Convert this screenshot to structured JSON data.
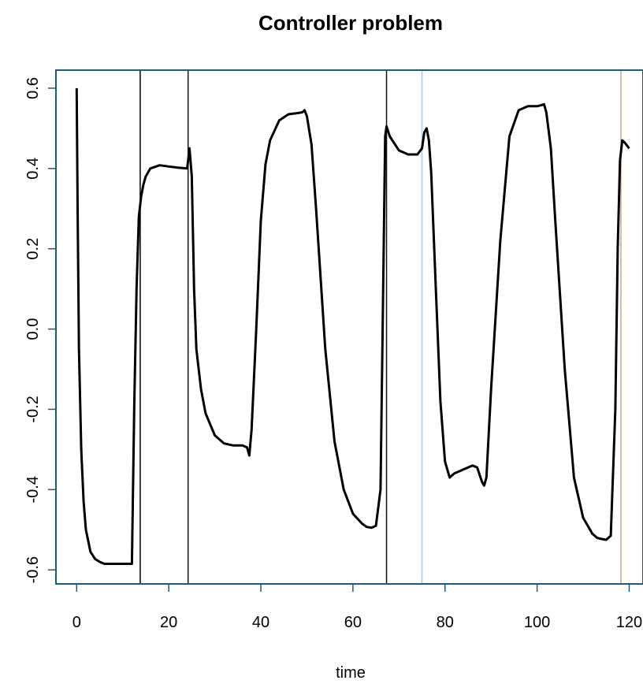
{
  "chart_data": {
    "type": "line",
    "title": "Controller problem",
    "xlabel": "time",
    "ylabel": "",
    "xlim": [
      -4.5,
      123
    ],
    "ylim": [
      -0.635,
      0.645
    ],
    "x_ticks": [
      0,
      20,
      40,
      60,
      80,
      100,
      120
    ],
    "x_tick_labels": [
      "0",
      "20",
      "40",
      "60",
      "80",
      "100",
      "120"
    ],
    "y_ticks": [
      -0.6,
      -0.4,
      -0.2,
      0.0,
      0.2,
      0.4,
      0.6
    ],
    "y_tick_labels": [
      "-0.6",
      "-0.4",
      "-0.2",
      "0.0",
      "0.2",
      "0.4",
      "0.6"
    ],
    "grid": false,
    "legend": "none",
    "line_color": "#000000",
    "frame_color": "#1f5a7a",
    "series": [
      {
        "color": "#000000",
        "x": [
          0,
          0.2,
          0.5,
          1,
          1.5,
          2,
          3,
          4,
          5,
          6,
          8,
          10,
          12,
          12.5,
          13,
          13.5,
          14,
          14.5,
          15,
          16,
          18,
          20,
          22,
          24,
          24.5,
          25,
          25.5,
          26,
          27,
          28,
          30,
          32,
          34,
          36,
          37,
          37.5,
          38,
          39,
          40,
          41,
          42,
          44,
          46,
          48,
          49,
          49.5,
          50,
          51,
          52,
          54,
          56,
          58,
          60,
          62,
          63,
          64,
          65,
          66,
          67,
          67.3,
          68,
          70,
          72,
          74,
          75,
          75.5,
          76,
          76.5,
          77,
          78,
          79,
          80,
          81,
          82,
          84,
          86,
          87,
          88,
          88.5,
          89,
          90,
          92,
          94,
          96,
          98,
          100,
          101,
          101.5,
          102,
          103,
          104,
          106,
          108,
          110,
          112,
          113,
          114,
          115,
          116,
          117,
          117.5,
          118,
          118.5,
          119,
          120
        ],
        "y": [
          0.6,
          0.3,
          -0.05,
          -0.3,
          -0.43,
          -0.5,
          -0.555,
          -0.573,
          -0.58,
          -0.585,
          -0.585,
          -0.585,
          -0.585,
          -0.2,
          0.1,
          0.28,
          0.33,
          0.36,
          0.38,
          0.4,
          0.408,
          0.405,
          0.402,
          0.4,
          0.45,
          0.38,
          0.1,
          -0.05,
          -0.15,
          -0.21,
          -0.265,
          -0.285,
          -0.29,
          -0.29,
          -0.295,
          -0.315,
          -0.25,
          0.0,
          0.27,
          0.41,
          0.47,
          0.52,
          0.535,
          0.538,
          0.54,
          0.545,
          0.53,
          0.46,
          0.3,
          -0.05,
          -0.28,
          -0.4,
          -0.46,
          -0.485,
          -0.493,
          -0.495,
          -0.49,
          -0.4,
          0.48,
          0.505,
          0.48,
          0.445,
          0.435,
          0.435,
          0.45,
          0.49,
          0.5,
          0.47,
          0.39,
          0.1,
          -0.18,
          -0.33,
          -0.37,
          -0.36,
          -0.35,
          -0.34,
          -0.345,
          -0.38,
          -0.39,
          -0.37,
          -0.15,
          0.22,
          0.48,
          0.545,
          0.555,
          0.555,
          0.558,
          0.56,
          0.54,
          0.45,
          0.26,
          -0.1,
          -0.37,
          -0.47,
          -0.51,
          -0.52,
          -0.523,
          -0.525,
          -0.515,
          -0.2,
          0.2,
          0.42,
          0.47,
          0.465,
          0.45
        ]
      }
    ],
    "vertical_lines": [
      {
        "x": 13.8,
        "color": "#000000"
      },
      {
        "x": 24.2,
        "color": "#111111"
      },
      {
        "x": 67.3,
        "color": "#111111"
      },
      {
        "x": 75.0,
        "color": "#8fd7ea"
      },
      {
        "x": 118.2,
        "color": "#c8a882"
      }
    ]
  }
}
